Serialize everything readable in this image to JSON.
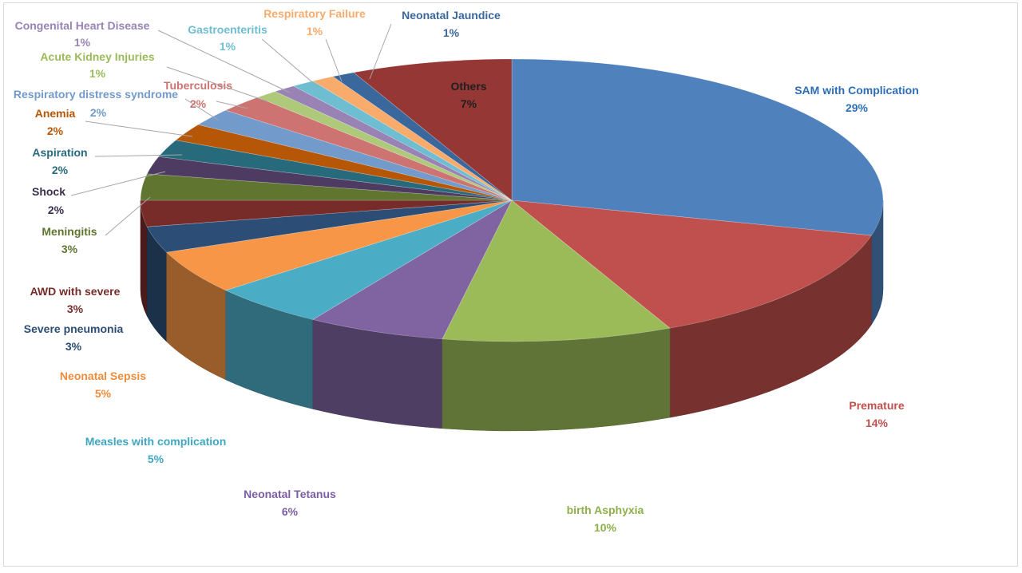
{
  "chart_data": {
    "type": "pie",
    "title": "",
    "unit": "%",
    "slices": [
      {
        "name": "SAM with Complication",
        "value": 29,
        "label": "29%",
        "color": "#4F81BD",
        "label_color": "#2E6EB5"
      },
      {
        "name": "Premature",
        "value": 14,
        "label": "14%",
        "color": "#C0504D",
        "label_color": "#C0504D"
      },
      {
        "name": "birth Asphyxia",
        "value": 10,
        "label": "10%",
        "color": "#9BBB59",
        "label_color": "#8DB04A"
      },
      {
        "name": "Neonatal Tetanus",
        "value": 6,
        "label": "6%",
        "color": "#8064A2",
        "label_color": "#7B5EA3"
      },
      {
        "name": "Measles with complication",
        "value": 5,
        "label": "5%",
        "color": "#4BACC6",
        "label_color": "#3FA6C2"
      },
      {
        "name": "Neonatal Sepsis",
        "value": 5,
        "label": "5%",
        "color": "#F79646",
        "label_color": "#F08C3A"
      },
      {
        "name": "Severe pneumonia",
        "value": 3,
        "label": "3%",
        "color": "#2C4D75",
        "label_color": "#2C4D75"
      },
      {
        "name": "AWD with severe",
        "value": 3,
        "label": "3%",
        "color": "#772C2A",
        "label_color": "#772C2A"
      },
      {
        "name": "Meningitis",
        "value": 3,
        "label": "3%",
        "color": "#5F7530",
        "label_color": "#5F7530"
      },
      {
        "name": "Shock",
        "value": 2,
        "label": "2%",
        "color": "#4D3B62",
        "label_color": "#3A2E4D"
      },
      {
        "name": "Aspiration",
        "value": 2,
        "label": "2%",
        "color": "#276A7C",
        "label_color": "#276A7C"
      },
      {
        "name": "Anemia",
        "value": 2,
        "label": "2%",
        "color": "#B65708",
        "label_color": "#B65708"
      },
      {
        "name": "Respiratory distress syndrome",
        "value": 2,
        "label": "2%",
        "color": "#729ACA",
        "label_color": "#729ACA"
      },
      {
        "name": "Tuberculosis",
        "value": 2,
        "label": "2%",
        "color": "#CD7371",
        "label_color": "#CD7371"
      },
      {
        "name": "Acute Kidney Injuries",
        "value": 1,
        "label": "1%",
        "color": "#AFC97A",
        "label_color": "#9BBB59"
      },
      {
        "name": "Congenital Heart Disease",
        "value": 1,
        "label": "1%",
        "color": "#9983B5",
        "label_color": "#9983B5"
      },
      {
        "name": "Gastroenteritis",
        "value": 1,
        "label": "1%",
        "color": "#6FBDD1",
        "label_color": "#6FBDD1"
      },
      {
        "name": "Respiratory Failure",
        "value": 1,
        "label": "1%",
        "color": "#F9AB6B",
        "label_color": "#F9AB6B"
      },
      {
        "name": "Neonatal Jaundice",
        "value": 1,
        "label": "1%",
        "color": "#3A679C",
        "label_color": "#3A679C"
      },
      {
        "name": "Others",
        "value": 7,
        "label": "7%",
        "color": "#953735",
        "label_color": "#1F1F1F"
      }
    ],
    "legend": "none",
    "style": "3d-pie"
  }
}
